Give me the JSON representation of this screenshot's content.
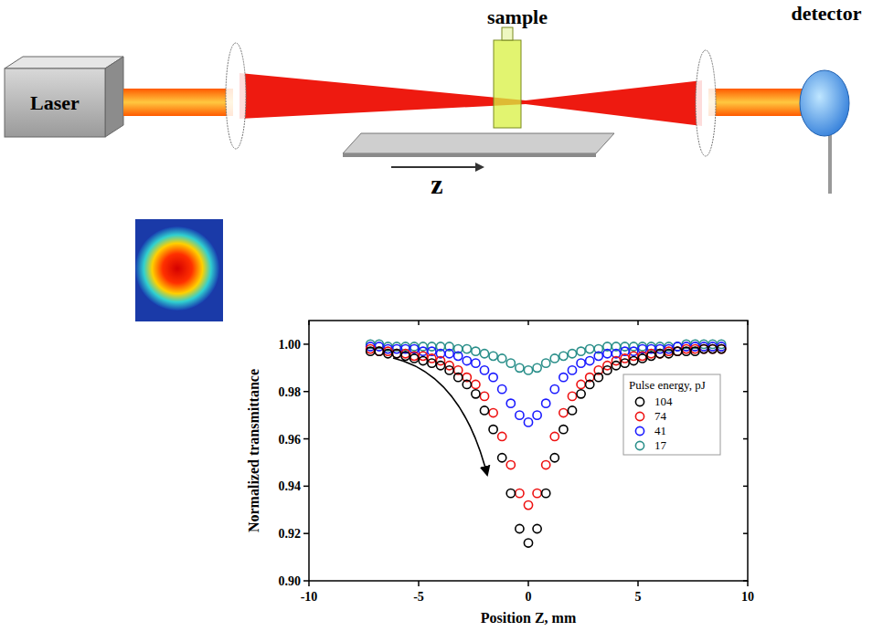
{
  "chart_data": {
    "type": "scatter",
    "x_label": "Position Z, mm",
    "y_label": "Normalized transmittance",
    "x": [
      -7.2,
      -6.8,
      -6.4,
      -6.0,
      -5.6,
      -5.2,
      -4.8,
      -4.4,
      -4.0,
      -3.6,
      -3.2,
      -2.8,
      -2.4,
      -2.0,
      -1.6,
      -1.2,
      -0.8,
      -0.4,
      0,
      0.4,
      0.8,
      1.2,
      1.6,
      2.0,
      2.4,
      2.8,
      3.2,
      3.6,
      4.0,
      4.4,
      4.8,
      5.2,
      5.6,
      6.0,
      6.4,
      6.8,
      7.2,
      7.6,
      8.0,
      8.4,
      8.8
    ],
    "series": [
      {
        "name": "104",
        "color": "#000000",
        "values": [
          0.997,
          0.997,
          0.996,
          0.996,
          0.995,
          0.994,
          0.993,
          0.992,
          0.991,
          0.989,
          0.986,
          0.983,
          0.979,
          0.972,
          0.964,
          0.952,
          0.937,
          0.922,
          0.916,
          0.922,
          0.937,
          0.952,
          0.964,
          0.972,
          0.979,
          0.983,
          0.986,
          0.989,
          0.991,
          0.992,
          0.993,
          0.994,
          0.995,
          0.996,
          0.996,
          0.997,
          0.997,
          0.997,
          0.998,
          0.998,
          0.998
        ]
      },
      {
        "name": "74",
        "color": "#ee1111",
        "values": [
          0.998,
          0.997,
          0.997,
          0.996,
          0.996,
          0.995,
          0.995,
          0.994,
          0.993,
          0.991,
          0.989,
          0.986,
          0.983,
          0.978,
          0.971,
          0.961,
          0.949,
          0.937,
          0.932,
          0.937,
          0.949,
          0.961,
          0.971,
          0.978,
          0.983,
          0.986,
          0.989,
          0.991,
          0.993,
          0.994,
          0.995,
          0.995,
          0.996,
          0.996,
          0.997,
          0.997,
          0.998,
          0.998,
          0.998,
          0.998,
          0.998
        ]
      },
      {
        "name": "41",
        "color": "#1a1aff",
        "values": [
          0.999,
          0.999,
          0.998,
          0.998,
          0.998,
          0.998,
          0.997,
          0.997,
          0.996,
          0.996,
          0.995,
          0.993,
          0.992,
          0.989,
          0.986,
          0.981,
          0.975,
          0.97,
          0.967,
          0.97,
          0.975,
          0.981,
          0.986,
          0.989,
          0.992,
          0.993,
          0.995,
          0.996,
          0.996,
          0.997,
          0.997,
          0.998,
          0.998,
          0.998,
          0.998,
          0.999,
          0.999,
          0.999,
          0.999,
          0.999,
          0.999
        ]
      },
      {
        "name": "17",
        "color": "#2a8f8a",
        "values": [
          1.0,
          1.0,
          0.999,
          0.999,
          0.999,
          0.999,
          0.999,
          0.999,
          0.999,
          0.999,
          0.998,
          0.998,
          0.997,
          0.996,
          0.995,
          0.994,
          0.992,
          0.99,
          0.989,
          0.99,
          0.992,
          0.994,
          0.995,
          0.996,
          0.997,
          0.998,
          0.998,
          0.999,
          0.999,
          0.999,
          0.999,
          0.999,
          0.999,
          0.999,
          0.999,
          0.999,
          1.0,
          1.0,
          1.0,
          1.0,
          1.0
        ]
      }
    ],
    "legend_title": "Pulse energy, pJ",
    "legend": "right",
    "marker": "circle",
    "xlim": [
      -10,
      10
    ],
    "xticks": [
      -10,
      -5,
      0,
      5,
      10
    ],
    "ylim": [
      0.9,
      1.01
    ],
    "yticks": [
      {
        "value": 0.9,
        "label": "0.90"
      },
      0.92,
      0.94,
      0.96,
      0.98,
      {
        "value": 1.0,
        "label": "1.00"
      }
    ],
    "grid": false
  },
  "diagram": {
    "laser": "Laser",
    "sample": "sample",
    "detector": "detector",
    "axis": "z"
  }
}
